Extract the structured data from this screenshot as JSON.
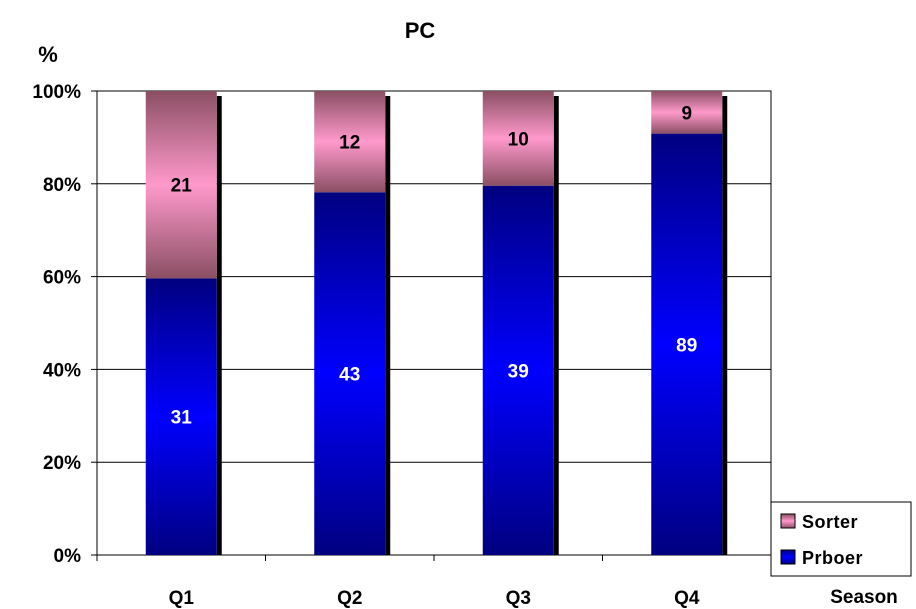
{
  "chart_data": {
    "type": "bar",
    "stacked": true,
    "normalized_percent": true,
    "title": "PC",
    "ylabel": "%",
    "xlabel": "Season",
    "categories": [
      "Q1",
      "Q2",
      "Q3",
      "Q4"
    ],
    "y_ticks": [
      "0%",
      "20%",
      "40%",
      "60%",
      "80%",
      "100%"
    ],
    "ylim": [
      0,
      100
    ],
    "grid": true,
    "legend_position": "bottom-right",
    "series": [
      {
        "name": "Prboer",
        "values": [
          31,
          43,
          39,
          89
        ],
        "color": "#0000ff"
      },
      {
        "name": "Sorter",
        "values": [
          21,
          12,
          10,
          9
        ],
        "color": "#ff99cc"
      }
    ]
  }
}
